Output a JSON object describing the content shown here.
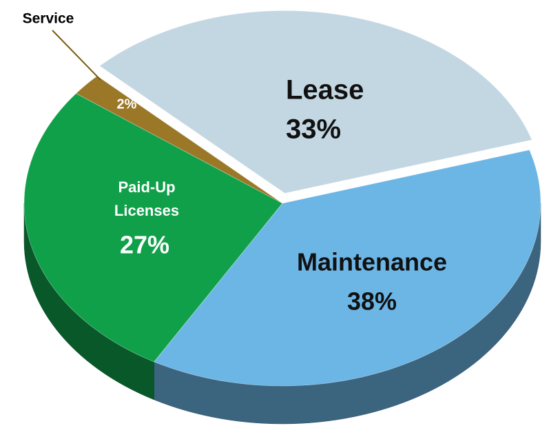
{
  "chart_data": {
    "type": "pie",
    "categories": [
      "Lease",
      "Maintenance",
      "Paid-Up Licenses",
      "Service"
    ],
    "values": [
      33,
      38,
      27,
      2
    ],
    "value_labels": [
      "33%",
      "38%",
      "27%",
      "2%"
    ],
    "colors": [
      "#c3d7e2",
      "#6cb6e6",
      "#10a04a",
      "#9a7828"
    ]
  }
}
